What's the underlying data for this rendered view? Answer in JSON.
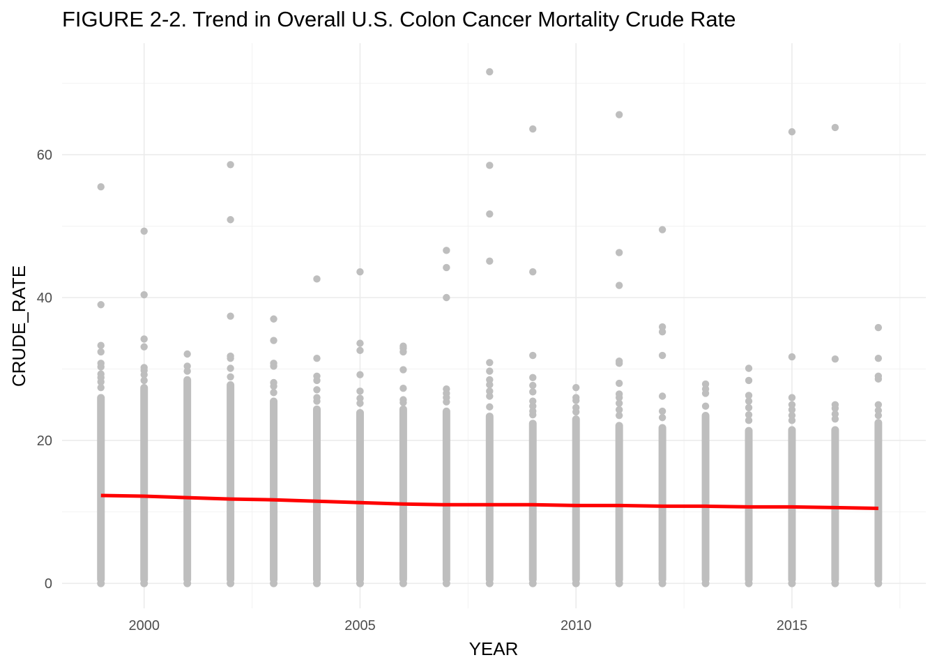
{
  "chart_data": {
    "type": "scatter",
    "title": "FIGURE 2-2. Trend in Overall U.S. Colon Cancer Mortality Crude Rate",
    "xlabel": "YEAR",
    "ylabel": "CRUDE_RATE",
    "xlim": [
      1998.1,
      2018.1
    ],
    "ylim": [
      -3.5,
      75.6
    ],
    "x_ticks": [
      2000,
      2005,
      2010,
      2015
    ],
    "y_ticks": [
      0,
      20,
      40,
      60
    ],
    "grid": true,
    "point_color": "#bebebe",
    "trend_color": "#ff0000",
    "years": [
      {
        "year": 1999,
        "dense_max": 26.5,
        "outliers": [
          55.5,
          39.0,
          33.3,
          32.4,
          30.8,
          30.3,
          29.3,
          28.8,
          28.2,
          27.4
        ]
      },
      {
        "year": 2000,
        "dense_max": 27.9,
        "outliers": [
          49.3,
          40.4,
          34.2,
          33.1,
          30.2,
          29.8,
          29.2,
          28.4
        ]
      },
      {
        "year": 2001,
        "dense_max": 29.0,
        "outliers": [
          32.1,
          30.4,
          29.7
        ]
      },
      {
        "year": 2002,
        "dense_max": 28.3,
        "outliers": [
          58.6,
          50.9,
          37.4,
          31.8,
          31.5,
          30.1,
          28.9
        ]
      },
      {
        "year": 2003,
        "dense_max": 26.0,
        "outliers": [
          37.0,
          34.0,
          30.8,
          30.4,
          28.1,
          27.6,
          26.7
        ]
      },
      {
        "year": 2004,
        "dense_max": 24.9,
        "outliers": [
          42.6,
          31.5,
          29.0,
          28.4,
          27.1,
          26.0,
          25.5
        ]
      },
      {
        "year": 2005,
        "dense_max": 24.4,
        "outliers": [
          43.6,
          33.6,
          32.6,
          29.2,
          26.9,
          25.9,
          25.2
        ]
      },
      {
        "year": 2006,
        "dense_max": 24.9,
        "outliers": [
          33.2,
          32.9,
          32.4,
          29.9,
          27.3,
          25.7,
          25.3
        ]
      },
      {
        "year": 2007,
        "dense_max": 24.6,
        "outliers": [
          46.6,
          44.2,
          40.0,
          27.2,
          26.6,
          26.0,
          25.4
        ]
      },
      {
        "year": 2008,
        "dense_max": 23.9,
        "outliers": [
          71.6,
          58.5,
          51.7,
          45.1,
          30.9,
          29.7,
          28.5,
          27.8,
          26.9,
          26.2,
          24.7
        ]
      },
      {
        "year": 2009,
        "dense_max": 22.9,
        "outliers": [
          63.6,
          43.6,
          31.9,
          28.8,
          27.7,
          26.8,
          25.5,
          24.8,
          24.1,
          23.6
        ]
      },
      {
        "year": 2010,
        "dense_max": 23.5,
        "outliers": [
          27.4,
          26.0,
          25.6,
          24.6,
          24.0
        ]
      },
      {
        "year": 2011,
        "dense_max": 22.6,
        "outliers": [
          65.6,
          46.3,
          41.7,
          31.1,
          30.8,
          28.0,
          26.5,
          26.0,
          25.2,
          24.3,
          23.5
        ]
      },
      {
        "year": 2012,
        "dense_max": 22.3,
        "outliers": [
          49.5,
          35.9,
          35.2,
          31.9,
          26.2,
          24.1,
          23.2
        ]
      },
      {
        "year": 2013,
        "dense_max": 24.0,
        "outliers": [
          27.9,
          27.2,
          26.6,
          24.8
        ]
      },
      {
        "year": 2014,
        "dense_max": 21.9,
        "outliers": [
          30.1,
          28.4,
          26.3,
          25.5,
          24.6,
          23.6,
          22.8
        ]
      },
      {
        "year": 2015,
        "dense_max": 22.0,
        "outliers": [
          63.2,
          31.7,
          26.0,
          25.0,
          24.3,
          23.5,
          22.8
        ]
      },
      {
        "year": 2016,
        "dense_max": 22.0,
        "outliers": [
          63.8,
          31.4,
          25.0,
          24.5,
          23.7,
          23.0
        ]
      },
      {
        "year": 2017,
        "dense_max": 23.0,
        "outliers": [
          35.8,
          31.5,
          29.0,
          28.6,
          25.0,
          24.2,
          23.5
        ]
      }
    ],
    "trend": {
      "x": [
        1999,
        2000,
        2001,
        2002,
        2003,
        2004,
        2005,
        2006,
        2007,
        2008,
        2009,
        2010,
        2011,
        2012,
        2013,
        2014,
        2015,
        2016,
        2017
      ],
      "y": [
        12.3,
        12.2,
        12.0,
        11.8,
        11.7,
        11.5,
        11.3,
        11.1,
        11.0,
        11.0,
        11.0,
        10.9,
        10.9,
        10.8,
        10.8,
        10.7,
        10.7,
        10.6,
        10.5
      ]
    }
  }
}
